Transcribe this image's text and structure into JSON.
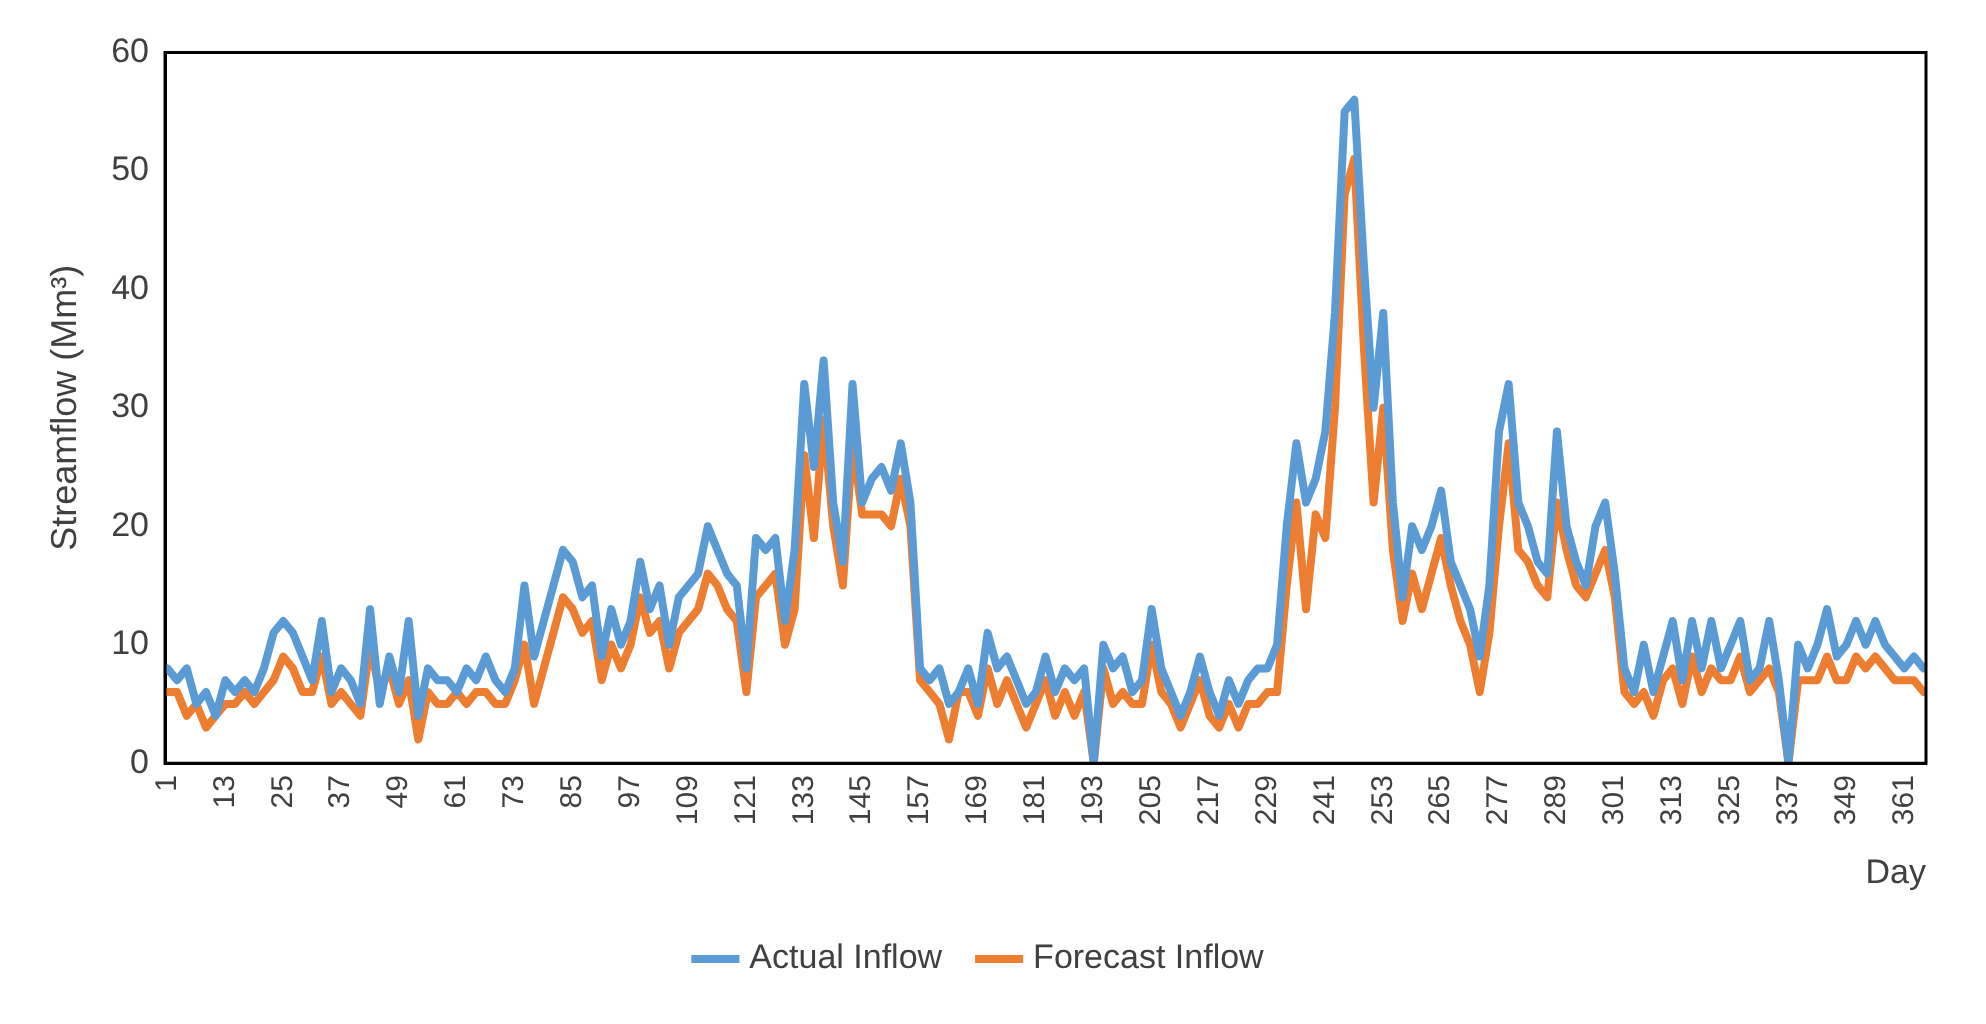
{
  "chart_data": {
    "type": "line",
    "xlabel": "Day",
    "ylabel": "Streamflow (Mm³)",
    "x": [
      1,
      3,
      5,
      7,
      9,
      11,
      13,
      15,
      17,
      19,
      21,
      23,
      25,
      27,
      29,
      31,
      33,
      35,
      37,
      39,
      41,
      43,
      45,
      47,
      49,
      51,
      53,
      55,
      57,
      59,
      61,
      63,
      65,
      67,
      69,
      71,
      73,
      75,
      77,
      79,
      81,
      83,
      85,
      87,
      89,
      91,
      93,
      95,
      97,
      99,
      101,
      103,
      105,
      107,
      109,
      111,
      113,
      115,
      117,
      119,
      121,
      123,
      125,
      127,
      129,
      131,
      133,
      135,
      137,
      139,
      141,
      143,
      145,
      147,
      149,
      151,
      153,
      155,
      157,
      159,
      161,
      163,
      165,
      167,
      169,
      171,
      173,
      175,
      177,
      179,
      181,
      183,
      185,
      187,
      189,
      191,
      193,
      195,
      197,
      199,
      201,
      203,
      205,
      207,
      209,
      211,
      213,
      215,
      217,
      219,
      221,
      223,
      225,
      227,
      229,
      231,
      233,
      235,
      237,
      239,
      241,
      243,
      245,
      247,
      249,
      251,
      253,
      255,
      257,
      259,
      261,
      263,
      265,
      267,
      269,
      271,
      273,
      275,
      277,
      279,
      281,
      283,
      285,
      287,
      289,
      291,
      293,
      295,
      297,
      299,
      301,
      303,
      305,
      307,
      309,
      311,
      313,
      315,
      317,
      319,
      321,
      323,
      325,
      327,
      329,
      331,
      333,
      335,
      337,
      339,
      341,
      343,
      345,
      347,
      349,
      351,
      353,
      355,
      357,
      359,
      361,
      363,
      365
    ],
    "series": [
      {
        "name": "Actual Inflow",
        "color": "#5b9bd5",
        "values": [
          8,
          7,
          8,
          5,
          6,
          4,
          7,
          6,
          7,
          6,
          8,
          11,
          12,
          11,
          9,
          7,
          12,
          6,
          8,
          7,
          5,
          13,
          5,
          9,
          6,
          12,
          4,
          8,
          7,
          7,
          6,
          8,
          7,
          9,
          7,
          6,
          8,
          15,
          9,
          12,
          15,
          18,
          17,
          14,
          15,
          9,
          13,
          10,
          12,
          17,
          13,
          15,
          10,
          14,
          15,
          16,
          20,
          18,
          16,
          15,
          8,
          19,
          18,
          19,
          12,
          18,
          32,
          25,
          34,
          22,
          17,
          32,
          22,
          24,
          25,
          23,
          27,
          22,
          8,
          7,
          8,
          5,
          6,
          8,
          5,
          11,
          8,
          9,
          7,
          5,
          6,
          9,
          6,
          8,
          7,
          8,
          0,
          10,
          8,
          9,
          6,
          7,
          13,
          8,
          6,
          4,
          6,
          9,
          6,
          4,
          7,
          5,
          7,
          8,
          8,
          10,
          20,
          27,
          22,
          24,
          28,
          38,
          55,
          56,
          42,
          30,
          38,
          22,
          14,
          20,
          18,
          20,
          23,
          17,
          15,
          13,
          9,
          15,
          28,
          32,
          22,
          20,
          17,
          16,
          28,
          20,
          17,
          15,
          20,
          22,
          16,
          8,
          6,
          10,
          6,
          9,
          12,
          7,
          12,
          8,
          12,
          8,
          10,
          12,
          7,
          8,
          12,
          7,
          0,
          10,
          8,
          10,
          13,
          9,
          10,
          12,
          10,
          12,
          10,
          9,
          8,
          9,
          8
        ]
      },
      {
        "name": "Forecast Inflow",
        "color": "#ed7d31",
        "values": [
          6,
          6,
          4,
          5,
          3,
          4,
          5,
          5,
          6,
          5,
          6,
          7,
          9,
          8,
          6,
          6,
          9,
          5,
          6,
          5,
          4,
          10,
          6,
          8,
          5,
          7,
          2,
          6,
          5,
          5,
          6,
          5,
          6,
          6,
          5,
          5,
          7,
          10,
          5,
          8,
          11,
          14,
          13,
          11,
          12,
          7,
          10,
          8,
          10,
          14,
          11,
          12,
          8,
          11,
          12,
          13,
          16,
          15,
          13,
          12,
          6,
          14,
          15,
          16,
          10,
          13,
          26,
          19,
          29,
          20,
          15,
          27,
          21,
          21,
          21,
          20,
          24,
          20,
          7,
          6,
          5,
          2,
          6,
          6,
          4,
          8,
          5,
          7,
          5,
          3,
          5,
          7,
          4,
          6,
          4,
          6,
          0,
          8,
          5,
          6,
          5,
          5,
          10,
          6,
          5,
          3,
          5,
          7,
          4,
          3,
          5,
          3,
          5,
          5,
          6,
          6,
          15,
          22,
          13,
          21,
          19,
          30,
          48,
          51,
          35,
          22,
          30,
          18,
          12,
          16,
          13,
          16,
          19,
          15,
          12,
          10,
          6,
          11,
          20,
          27,
          18,
          17,
          15,
          14,
          22,
          18,
          15,
          14,
          16,
          18,
          14,
          6,
          5,
          6,
          4,
          7,
          8,
          5,
          9,
          6,
          8,
          7,
          7,
          9,
          6,
          7,
          8,
          6,
          0,
          7,
          7,
          7,
          9,
          7,
          7,
          9,
          8,
          9,
          8,
          7,
          7,
          7,
          6
        ]
      }
    ],
    "xlim": [
      0.5,
      365.5
    ],
    "xticks": [
      1,
      13,
      25,
      37,
      49,
      61,
      73,
      85,
      97,
      109,
      121,
      133,
      145,
      157,
      169,
      181,
      193,
      205,
      217,
      229,
      241,
      253,
      265,
      277,
      289,
      301,
      313,
      325,
      337,
      349,
      361
    ],
    "ylim": [
      0,
      60
    ],
    "yticks": [
      0,
      10,
      20,
      30,
      40,
      50,
      60
    ],
    "grid": false,
    "legend": "bottom",
    "marker": "none",
    "line_style": "solid"
  }
}
